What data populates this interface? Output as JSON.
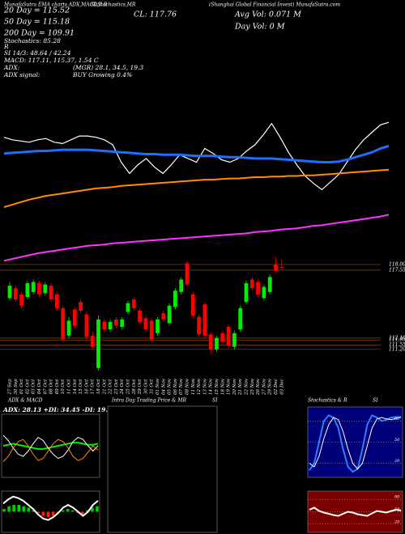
{
  "header": {
    "left": "MunafaSutra EMA charts ADX,MACD,B.B",
    "stoch": "SLStochastics,MR",
    "close": "CL: 117.76",
    "company": "(Shanghai Global Financial Invest) MunafaSutra.com",
    "avg_vol": "Avg Vol: 0.071 M",
    "day_vol": "Day Vol: 0 M"
  },
  "stats": [
    "20 Day = 115.52",
    "50 Day = 115.18",
    "200 Day = 109.91",
    "Stochastics: 85.28",
    "R",
    "SI 14/3: 48.64 / 42.24",
    "MACD: 117.11, 115.37, 1.54 C",
    "ADX:",
    "(MGR) 28.1, 34.5, 19.3",
    "ADX signal:",
    "BUY Growing 0.4%"
  ],
  "chart_data": [
    {
      "type": "candlestick",
      "x": [
        "27 Sep",
        "30 Sep",
        "01 Oct",
        "02 Oct",
        "03 Oct",
        "04 Oct",
        "07 Oct",
        "08 Oct",
        "09 Oct",
        "10 Oct",
        "11 Oct",
        "14 Oct",
        "15 Oct",
        "16 Oct",
        "17 Oct",
        "18 Oct",
        "21 Oct",
        "22 Oct",
        "23 Oct",
        "24 Oct",
        "25 Oct",
        "28 Oct",
        "29 Oct",
        "30 Oct",
        "31 Oct",
        "01 Nov",
        "04 Nov",
        "05 Nov",
        "06 Nov",
        "07 Nov",
        "08 Nov",
        "11 Nov",
        "12 Nov",
        "13 Nov",
        "14 Nov",
        "15 Nov",
        "18 Nov",
        "19 Nov",
        "20 Nov",
        "21 Nov",
        "22 Nov",
        "25 Nov",
        "26 Nov",
        "27 Nov",
        "29 Nov",
        "02 Dec",
        "03 Dec"
      ],
      "open": [
        115.3,
        116.1,
        115.6,
        115.4,
        115.8,
        116.5,
        115.7,
        116.3,
        115.6,
        114.5,
        112.3,
        114.4,
        115.0,
        114.0,
        112.3,
        109.7,
        113.4,
        112.8,
        113.6,
        113.0,
        114.2,
        115.2,
        114.3,
        113.7,
        113.5,
        112.5,
        114.1,
        113.3,
        114.6,
        115.8,
        118.1,
        115.6,
        113.8,
        114.8,
        112.4,
        111.2,
        112.5,
        113.0,
        111.4,
        112.8,
        115.0,
        116.8,
        116.6,
        115.3,
        115.8,
        118.0,
        117.8
      ],
      "high": [
        116.6,
        116.3,
        115.8,
        116.7,
        116.8,
        116.7,
        116.6,
        116.5,
        115.8,
        114.7,
        113.8,
        114.6,
        115.2,
        114.2,
        112.6,
        113.9,
        113.6,
        113.6,
        113.8,
        113.8,
        115.1,
        115.4,
        114.5,
        113.9,
        113.7,
        113.8,
        114.3,
        114.9,
        116.1,
        117.0,
        118.3,
        115.8,
        114.0,
        115.0,
        112.6,
        112.3,
        112.7,
        113.2,
        112.7,
        114.7,
        116.7,
        117.0,
        116.8,
        116.4,
        117.2,
        118.6,
        118.4
      ],
      "low": [
        115.1,
        115.0,
        114.5,
        115.2,
        115.6,
        115.4,
        115.5,
        115.0,
        114.3,
        111.8,
        112.1,
        112.9,
        114.1,
        112.0,
        111.2,
        109.5,
        112.6,
        112.6,
        112.9,
        112.8,
        114.0,
        114.3,
        113.2,
        112.6,
        111.8,
        112.3,
        113.4,
        113.1,
        114.4,
        115.6,
        116.2,
        113.7,
        112.2,
        112.1,
        110.8,
        111.0,
        111.6,
        111.3,
        111.2,
        112.6,
        114.8,
        115.9,
        115.4,
        115.1,
        115.6,
        117.3,
        117.6
      ],
      "close": [
        116.3,
        115.2,
        114.7,
        116.5,
        116.6,
        115.6,
        116.4,
        115.2,
        114.5,
        112.0,
        113.5,
        113.1,
        114.3,
        112.2,
        111.4,
        113.6,
        112.8,
        113.4,
        113.1,
        113.6,
        114.9,
        114.5,
        113.4,
        112.8,
        112.0,
        113.6,
        113.6,
        114.7,
        115.9,
        116.8,
        116.4,
        113.9,
        112.4,
        112.3,
        111.2,
        112.1,
        111.8,
        111.5,
        112.5,
        114.5,
        116.5,
        116.1,
        115.6,
        116.2,
        117.0,
        117.5,
        117.76
      ],
      "up_color": "#00ee00",
      "down_color": "#ff0000",
      "overlays": [
        {
          "color": "#ffffff",
          "values": [
            128.2,
            128.0,
            127.9,
            127.8,
            128.0,
            128.1,
            127.8,
            127.7,
            128.0,
            128.3,
            128.3,
            128.2,
            128.0,
            127.6,
            126.2,
            125.3,
            126.0,
            126.5,
            125.8,
            125.3,
            126.0,
            126.8,
            126.5,
            126.2,
            127.3,
            126.9,
            126.4,
            126.2,
            126.5,
            127.1,
            127.6,
            128.4,
            129.3,
            128.2,
            127.0,
            126.0,
            125.1,
            124.5,
            124.0,
            124.6,
            125.2,
            126.2,
            127.2,
            128.0,
            128.6,
            129.2,
            129.4
          ]
        },
        {
          "color": "#1e6fff",
          "values": [
            126.9,
            126.95,
            127.0,
            127.05,
            127.1,
            127.1,
            127.15,
            127.2,
            127.2,
            127.2,
            127.2,
            127.15,
            127.1,
            127.05,
            127.0,
            126.95,
            126.9,
            126.85,
            126.85,
            126.8,
            126.8,
            126.8,
            126.75,
            126.7,
            126.7,
            126.7,
            126.65,
            126.6,
            126.6,
            126.55,
            126.5,
            126.5,
            126.5,
            126.45,
            126.4,
            126.35,
            126.3,
            126.25,
            126.2,
            126.2,
            126.25,
            126.4,
            126.6,
            126.8,
            127.0,
            127.3,
            127.5
          ]
        },
        {
          "color": "#ff8c00",
          "values": [
            122.6,
            122.8,
            123.0,
            123.2,
            123.35,
            123.5,
            123.6,
            123.7,
            123.8,
            123.9,
            124.0,
            124.1,
            124.15,
            124.2,
            124.3,
            124.35,
            124.4,
            124.45,
            124.5,
            124.55,
            124.6,
            124.65,
            124.7,
            124.75,
            124.8,
            124.8,
            124.85,
            124.9,
            124.9,
            124.95,
            125.0,
            125.0,
            125.05,
            125.05,
            125.1,
            125.1,
            125.15,
            125.15,
            125.2,
            125.25,
            125.3,
            125.35,
            125.4,
            125.45,
            125.5,
            125.55,
            125.6
          ]
        },
        {
          "color": "#ff33ff",
          "values": [
            118.3,
            118.45,
            118.6,
            118.75,
            118.9,
            119.0,
            119.1,
            119.2,
            119.3,
            119.4,
            119.5,
            119.55,
            119.6,
            119.7,
            119.75,
            119.8,
            119.85,
            119.9,
            119.95,
            120.0,
            120.05,
            120.1,
            120.15,
            120.2,
            120.25,
            120.3,
            120.35,
            120.4,
            120.45,
            120.5,
            120.6,
            120.65,
            120.7,
            120.8,
            120.85,
            120.9,
            121.0,
            121.1,
            121.15,
            121.25,
            121.35,
            121.45,
            121.55,
            121.65,
            121.75,
            121.85,
            122.0
          ]
        }
      ],
      "ylim": [
        109.5,
        129.8
      ],
      "yticks": [
        {
          "value": 118,
          "label": "118.00"
        },
        117.55,
        {
          "value": 112.1,
          "label": "112.10"
        },
        111.95,
        111.55,
        {
          "value": 111.2,
          "label": "111.20"
        }
      ]
    },
    {
      "type": "line",
      "title": "ADX & MACD",
      "subtitle": "ADX: 28.13 +DI: 34.45 -DI: 19.33",
      "ylim": [
        0,
        60
      ],
      "background": "#000000",
      "series": [
        {
          "color": "#00ee00",
          "values": [
            30,
            31,
            32,
            31,
            30,
            29,
            28,
            27,
            27,
            28,
            29,
            30,
            31,
            32,
            33,
            33,
            32,
            31,
            31,
            32
          ]
        },
        {
          "color": "#ffffff",
          "values": [
            40,
            35,
            28,
            22,
            20,
            25,
            32,
            38,
            35,
            28,
            22,
            18,
            20,
            26,
            34,
            38,
            36,
            30,
            25,
            30
          ]
        },
        {
          "color": "#ff8c00",
          "values": [
            15,
            20,
            28,
            34,
            36,
            30,
            22,
            16,
            18,
            25,
            32,
            36,
            34,
            28,
            20,
            16,
            18,
            24,
            30,
            26
          ]
        }
      ]
    },
    {
      "type": "bar",
      "ylim": [
        -1.5,
        1.5
      ],
      "up_color": "#00cc00",
      "down_color": "#ff2200",
      "background": "#000000",
      "values": [
        0.2,
        0.4,
        0.5,
        0.5,
        0.4,
        0.3,
        0.1,
        -0.1,
        -0.3,
        -0.4,
        -0.3,
        -0.1,
        0.1,
        0.2,
        0.1,
        -0.1,
        -0.2,
        0.1,
        0.3,
        0.4
      ],
      "series": [
        {
          "color": "#ffffff",
          "values": [
            0.6,
            0.9,
            1.1,
            1.0,
            0.8,
            0.5,
            0.2,
            -0.2,
            -0.5,
            -0.6,
            -0.4,
            -0.1,
            0.3,
            0.5,
            0.3,
            0.0,
            -0.3,
            0.0,
            0.5,
            0.8
          ]
        }
      ]
    },
    {
      "type": "empty",
      "title": "Intra Day Trading Price & MR",
      "title2": "SI",
      "background": "#000000"
    },
    {
      "type": "line",
      "title": "Stochastics & R",
      "title2": "SI",
      "ylim": [
        0,
        100
      ],
      "yticks": [
        80,
        50,
        20
      ],
      "background": "#00007a",
      "series": [
        {
          "color": "#2a7fff",
          "values": [
            10,
            20,
            50,
            80,
            88,
            85,
            70,
            40,
            15,
            8,
            12,
            40,
            75,
            88,
            85,
            80,
            82,
            85,
            86,
            85
          ]
        },
        {
          "color": "#ffffff",
          "values": [
            20,
            15,
            30,
            55,
            75,
            85,
            82,
            65,
            40,
            20,
            12,
            20,
            45,
            70,
            83,
            85,
            83,
            82,
            84,
            86
          ]
        }
      ]
    },
    {
      "type": "line",
      "ylim": [
        0,
        100
      ],
      "yticks": [
        80,
        50,
        20
      ],
      "background": "#7a0000",
      "series": [
        {
          "color": "#ffffff",
          "values": [
            55,
            60,
            52,
            48,
            45,
            42,
            40,
            45,
            50,
            48,
            44,
            42,
            40,
            46,
            52,
            50,
            48,
            52,
            55,
            53
          ]
        }
      ]
    }
  ]
}
